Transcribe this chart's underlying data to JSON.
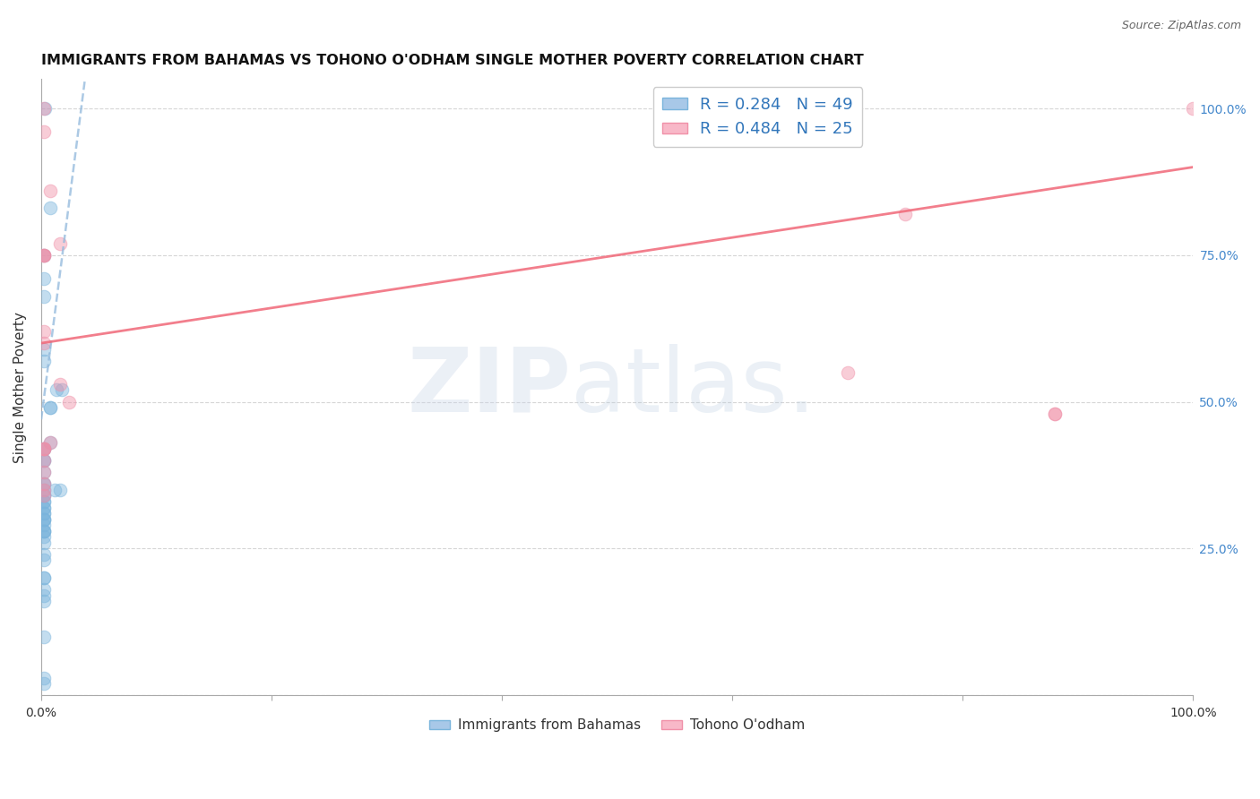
{
  "title": "IMMIGRANTS FROM BAHAMAS VS TOHONO O'ODHAM SINGLE MOTHER POVERTY CORRELATION CHART",
  "source": "Source: ZipAtlas.com",
  "ylabel": "Single Mother Poverty",
  "xlim": [
    0.0,
    1.0
  ],
  "ylim": [
    0.0,
    1.05
  ],
  "blue_scatter_x": [
    0.003,
    0.008,
    0.008,
    0.013,
    0.018,
    0.002,
    0.002,
    0.002,
    0.002,
    0.002,
    0.002,
    0.002,
    0.002,
    0.002,
    0.002,
    0.002,
    0.002,
    0.002,
    0.002,
    0.002,
    0.002,
    0.002,
    0.002,
    0.002,
    0.002,
    0.002,
    0.002,
    0.002,
    0.002,
    0.002,
    0.002,
    0.002,
    0.002,
    0.002,
    0.002,
    0.002,
    0.002,
    0.008,
    0.008,
    0.012,
    0.016,
    0.002,
    0.002,
    0.002,
    0.002,
    0.002,
    0.002,
    0.002,
    0.002
  ],
  "blue_scatter_y": [
    1.0,
    0.83,
    0.49,
    0.52,
    0.52,
    0.75,
    0.71,
    0.68,
    0.59,
    0.57,
    0.42,
    0.42,
    0.4,
    0.4,
    0.38,
    0.36,
    0.36,
    0.35,
    0.34,
    0.34,
    0.33,
    0.33,
    0.32,
    0.32,
    0.31,
    0.31,
    0.3,
    0.3,
    0.3,
    0.29,
    0.28,
    0.28,
    0.28,
    0.27,
    0.26,
    0.24,
    0.23,
    0.43,
    0.49,
    0.35,
    0.35,
    0.2,
    0.2,
    0.18,
    0.17,
    0.16,
    0.1,
    0.03,
    0.02
  ],
  "pink_scatter_x": [
    0.002,
    0.002,
    0.008,
    0.016,
    0.002,
    0.002,
    0.002,
    0.002,
    0.002,
    0.002,
    0.002,
    0.002,
    0.002,
    0.002,
    0.002,
    0.002,
    0.002,
    0.008,
    0.016,
    0.024,
    0.7,
    0.75,
    0.88,
    0.88,
    1.0
  ],
  "pink_scatter_y": [
    1.0,
    0.96,
    0.86,
    0.77,
    0.75,
    0.75,
    0.75,
    0.62,
    0.6,
    0.42,
    0.42,
    0.42,
    0.4,
    0.38,
    0.36,
    0.35,
    0.34,
    0.43,
    0.53,
    0.5,
    0.55,
    0.82,
    0.48,
    0.48,
    1.0
  ],
  "blue_line_x0": 0.0,
  "blue_line_x1": 0.038,
  "blue_line_y0": 0.47,
  "blue_line_y1": 1.05,
  "pink_line_x0": 0.0,
  "pink_line_x1": 1.0,
  "pink_line_y0": 0.6,
  "pink_line_y1": 0.9,
  "blue_color": "#7ab4dc",
  "pink_color": "#f090a8",
  "blue_line_color": "#90b8dc",
  "pink_line_color": "#f06878",
  "background_color": "#ffffff",
  "grid_color": "#cccccc",
  "title_fontsize": 11.5,
  "source_fontsize": 9,
  "scatter_size": 110
}
